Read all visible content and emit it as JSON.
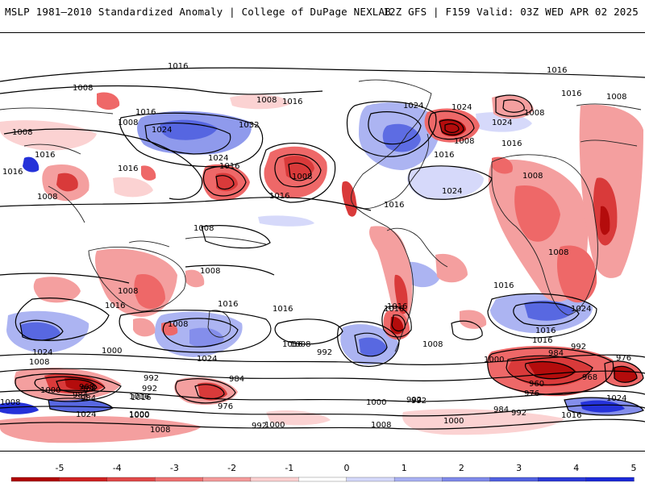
{
  "header": {
    "left_title": "MSLP 1981–2010 Standardized Anomaly | College of DuPage NEXLAB",
    "right_title": "12Z GFS | F159 Valid: 03Z WED APR 02 2025"
  },
  "isobar_labels": [
    "1016",
    "1008",
    "1008",
    "1016",
    "1016",
    "1008",
    "1008",
    "1024",
    "1032",
    "1016",
    "1016",
    "1008",
    "1016",
    "1024",
    "1016",
    "1008",
    "1016",
    "1016",
    "1016",
    "1024",
    "1024",
    "1008",
    "1024",
    "1016",
    "1008",
    "1008",
    "1016",
    "1024",
    "1016",
    "1008",
    "1008",
    "1008",
    "1008",
    "1016",
    "1016",
    "1016",
    "1016",
    "1016",
    "1008",
    "1024",
    "1008",
    "1024",
    "1000",
    "1008",
    "992",
    "1016",
    "1016",
    "1024",
    "1016",
    "984",
    "992",
    "976",
    "1000",
    "968",
    "960",
    "968",
    "984",
    "976",
    "992",
    "984",
    "992",
    "1000",
    "1000",
    "968",
    "984",
    "976",
    "1016",
    "992",
    "1000",
    "1008",
    "1024",
    "1000",
    "1008",
    "992",
    "1000",
    "984",
    "992",
    "1016",
    "1024",
    "1008",
    "1016",
    "1008",
    "1016",
    "1000",
    "1008",
    "992"
  ],
  "colorbar": {
    "ticks": [
      "-5",
      "-4",
      "-3",
      "-2",
      "-1",
      "0",
      "1",
      "2",
      "3",
      "4",
      "5"
    ],
    "colors": [
      "#b00000",
      "#d83030",
      "#ee6060",
      "#f49a9a",
      "#fbd0d0",
      "#ffffff",
      "#d4d8fa",
      "#a8b0f2",
      "#7e88ea",
      "#5060e0",
      "#1a28d8"
    ]
  }
}
